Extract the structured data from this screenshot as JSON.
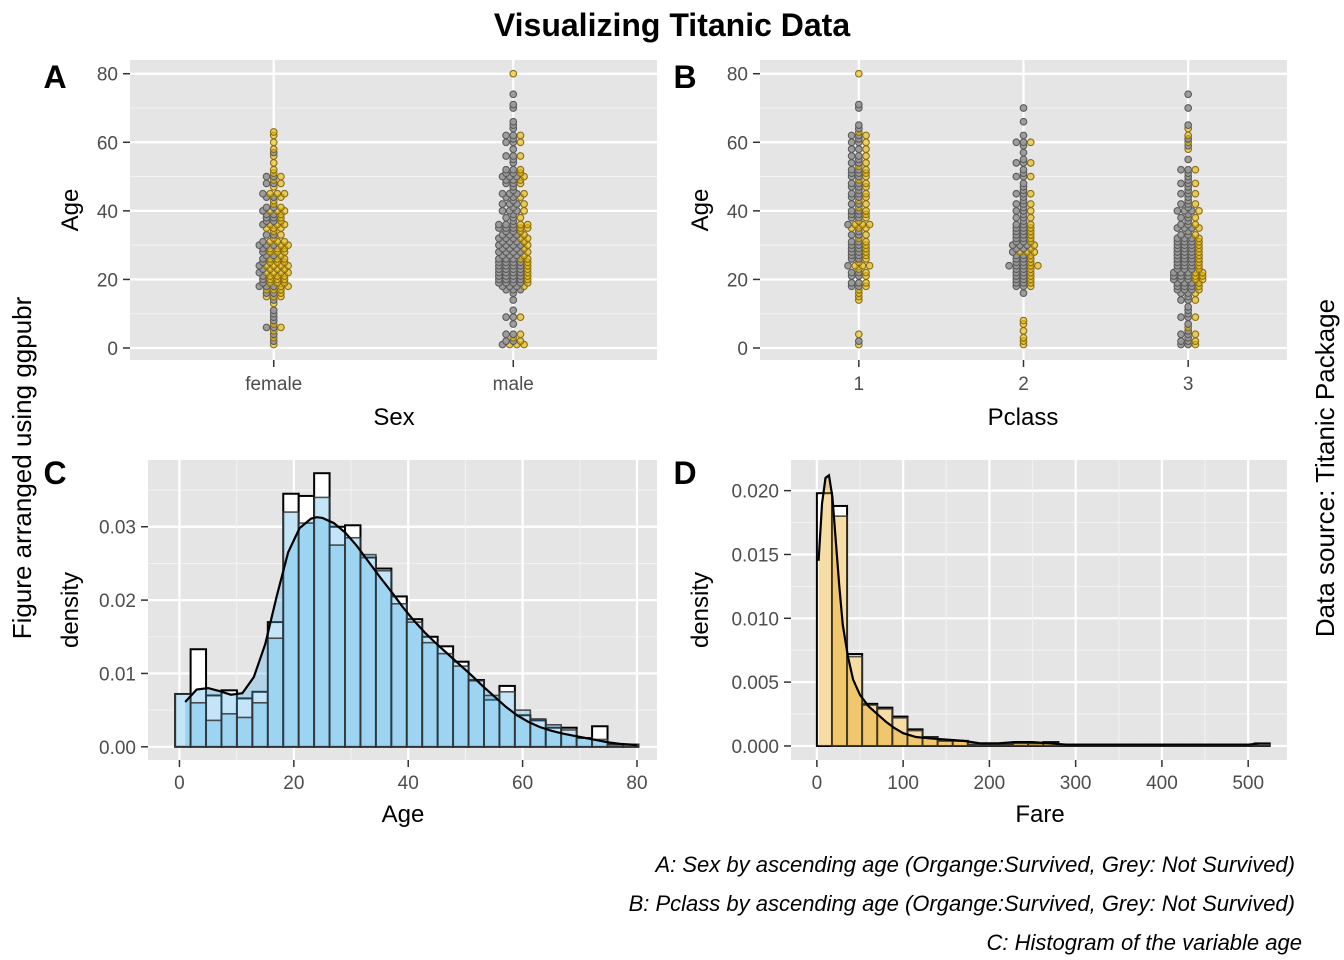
{
  "title": "Visualizing Titanic Data",
  "left_caption": "Figure arranged using ggpubr",
  "right_caption": "Data source: Titanic Package",
  "captions": [
    "A: Sex by ascending age (Organge:Survived, Grey: Not Survived)",
    "B: Pclass by ascending age (Organge:Survived, Grey: Not Survived)",
    "C: Histogram of the variable age"
  ],
  "colors": {
    "survived": "#E7B800",
    "not_survived": "#999999",
    "age_fill": "#56B4E9",
    "fare_fill": "#E69F00",
    "panel_bg": "#E5E5E5"
  },
  "chart_data": [
    {
      "tag": "A",
      "type": "scatter",
      "xlabel": "Sex",
      "ylabel": "Age",
      "categories": [
        "female",
        "male"
      ],
      "yticks": [
        0,
        20,
        40,
        60,
        80
      ],
      "ylim": [
        -3.5,
        84
      ],
      "series": [
        {
          "name": "Survived",
          "values": [
            {
              "x": "female",
              "y": [
                1,
                3,
                5,
                6,
                7,
                13,
                15,
                15,
                16,
                17,
                17,
                18,
                18,
                19,
                19,
                20,
                20,
                21,
                21,
                22,
                22,
                22,
                23,
                23,
                24,
                24,
                24,
                25,
                25,
                26,
                26,
                27,
                28,
                28,
                29,
                29,
                30,
                30,
                31,
                31,
                32,
                33,
                34,
                35,
                35,
                36,
                36,
                37,
                38,
                39,
                40,
                40,
                41,
                42,
                43,
                44,
                45,
                45,
                47,
                48,
                49,
                50,
                51,
                52,
                54,
                56,
                58,
                60,
                62,
                63
              ]
            },
            {
              "x": "male",
              "y": [
                1,
                1,
                2,
                3,
                4,
                9,
                18,
                19,
                20,
                21,
                22,
                23,
                24,
                25,
                26,
                26,
                27,
                28,
                29,
                30,
                31,
                32,
                32,
                33,
                34,
                35,
                35,
                36,
                36,
                38,
                40,
                42,
                44,
                45,
                48,
                49,
                50,
                51,
                52,
                56,
                60,
                62,
                80
              ]
            }
          ]
        },
        {
          "name": "Not Survived",
          "values": [
            {
              "x": "female",
              "y": [
                2,
                4,
                6,
                8,
                9,
                10,
                11,
                14,
                16,
                18,
                18,
                19,
                20,
                21,
                22,
                23,
                24,
                25,
                26,
                27,
                28,
                29,
                30,
                30,
                31,
                33,
                36,
                37,
                38,
                39,
                40,
                41,
                44,
                45,
                48,
                50,
                57
              ]
            },
            {
              "x": "male",
              "y": [
                1,
                2,
                4,
                7,
                9,
                11,
                14,
                16,
                17,
                17,
                18,
                18,
                19,
                19,
                19,
                20,
                20,
                20,
                21,
                21,
                21,
                22,
                22,
                22,
                23,
                23,
                23,
                24,
                24,
                24,
                25,
                25,
                25,
                26,
                26,
                27,
                27,
                28,
                28,
                28,
                29,
                29,
                30,
                30,
                30,
                31,
                31,
                32,
                32,
                33,
                33,
                34,
                35,
                35,
                36,
                36,
                37,
                38,
                39,
                40,
                40,
                41,
                42,
                42,
                43,
                44,
                45,
                45,
                46,
                47,
                48,
                49,
                50,
                50,
                51,
                52,
                54,
                55,
                56,
                58,
                60,
                61,
                62,
                64,
                65,
                66,
                70,
                71,
                74
              ]
            }
          ]
        }
      ]
    },
    {
      "tag": "B",
      "type": "scatter",
      "xlabel": "Pclass",
      "ylabel": "Age",
      "categories": [
        "1",
        "2",
        "3"
      ],
      "yticks": [
        0,
        20,
        40,
        60,
        80
      ],
      "ylim": [
        -3.5,
        84
      ],
      "series": [
        {
          "name": "Survived",
          "values": [
            {
              "x": "1",
              "y": [
                1,
                4,
                14,
                15,
                16,
                17,
                18,
                19,
                21,
                22,
                23,
                24,
                24,
                25,
                26,
                27,
                28,
                29,
                30,
                31,
                32,
                33,
                35,
                35,
                36,
                36,
                37,
                38,
                39,
                40,
                41,
                42,
                43,
                44,
                45,
                47,
                48,
                49,
                50,
                51,
                52,
                53,
                54,
                56,
                58,
                60,
                62,
                63,
                80
              ]
            },
            {
              "x": "2",
              "y": [
                1,
                2,
                3,
                5,
                7,
                8,
                18,
                19,
                20,
                21,
                22,
                23,
                24,
                24,
                25,
                26,
                27,
                28,
                28,
                29,
                30,
                31,
                32,
                33,
                34,
                35,
                36,
                38,
                40,
                42,
                45,
                50,
                54,
                60
              ]
            },
            {
              "x": "3",
              "y": [
                1,
                2,
                4,
                6,
                9,
                14,
                16,
                17,
                18,
                19,
                20,
                20,
                21,
                21,
                22,
                22,
                23,
                24,
                25,
                26,
                27,
                28,
                29,
                30,
                31,
                32,
                33,
                35,
                36,
                38,
                40,
                42,
                45,
                48,
                52,
                58,
                60,
                62,
                64
              ]
            }
          ]
        },
        {
          "name": "Not Survived",
          "values": [
            {
              "x": "1",
              "y": [
                2,
                18,
                19,
                21,
                22,
                24,
                26,
                27,
                28,
                29,
                30,
                31,
                33,
                34,
                36,
                38,
                39,
                40,
                42,
                44,
                45,
                46,
                47,
                48,
                50,
                51,
                52,
                54,
                55,
                56,
                58,
                60,
                61,
                62,
                64,
                65,
                70,
                71
              ]
            },
            {
              "x": "2",
              "y": [
                16,
                18,
                19,
                20,
                21,
                22,
                23,
                24,
                24,
                25,
                26,
                27,
                28,
                29,
                30,
                30,
                31,
                32,
                33,
                34,
                35,
                36,
                37,
                38,
                39,
                40,
                41,
                42,
                43,
                44,
                45,
                46,
                47,
                48,
                50,
                51,
                52,
                54,
                55,
                57,
                59,
                60,
                62,
                66,
                70
              ]
            },
            {
              "x": "3",
              "y": [
                1,
                2,
                3,
                4,
                5,
                7,
                9,
                10,
                11,
                12,
                14,
                15,
                16,
                17,
                17,
                18,
                18,
                19,
                19,
                20,
                20,
                21,
                21,
                22,
                22,
                23,
                23,
                24,
                24,
                25,
                25,
                26,
                26,
                27,
                27,
                28,
                28,
                29,
                29,
                30,
                30,
                31,
                31,
                32,
                32,
                33,
                34,
                35,
                35,
                36,
                37,
                38,
                39,
                40,
                40,
                41,
                42,
                43,
                44,
                45,
                46,
                47,
                48,
                49,
                50,
                51,
                52,
                55,
                59,
                61,
                65,
                70,
                74
              ]
            }
          ]
        }
      ]
    },
    {
      "tag": "C",
      "type": "bar",
      "xlabel": "Age",
      "ylabel": "density",
      "xticks": [
        0,
        20,
        40,
        60,
        80
      ],
      "yticks": [
        0.0,
        0.01,
        0.02,
        0.03
      ],
      "ytick_labels": [
        "0.00",
        "0.01",
        "0.02",
        "0.03"
      ],
      "xlim": [
        -5.5,
        83.5
      ],
      "ylim": [
        -0.0018,
        0.0391
      ],
      "bin_width": 2.7,
      "bins_x": [
        -0.75,
        1.95,
        4.65,
        7.35,
        10.05,
        12.75,
        15.45,
        18.15,
        20.85,
        23.55,
        26.25,
        28.95,
        31.65,
        34.35,
        37.05,
        39.75,
        42.45,
        45.15,
        47.85,
        50.55,
        53.25,
        55.95,
        58.65,
        61.35,
        64.05,
        66.75,
        69.45,
        72.15,
        74.85,
        77.55
      ],
      "bins_density": [
        0.0072,
        0.0133,
        0.007,
        0.0077,
        0.0066,
        0.0075,
        0.017,
        0.0345,
        0.0342,
        0.0373,
        0.03,
        0.0302,
        0.0258,
        0.0243,
        0.0205,
        0.0174,
        0.015,
        0.0137,
        0.0116,
        0.0091,
        0.0064,
        0.0083,
        0.0043,
        0.0036,
        0.0026,
        0.0026,
        0.0012,
        0.0028,
        0.0003,
        0.0003
      ],
      "fill_density": [
        0.0072,
        0.006,
        0.0036,
        0.0045,
        0.004,
        0.006,
        0.0148,
        0.032,
        0.0305,
        0.034,
        0.0275,
        0.0285,
        0.0262,
        0.024,
        0.0195,
        0.017,
        0.0142,
        0.0127,
        0.011,
        0.009,
        0.007,
        0.0075,
        0.005,
        0.0038,
        0.003,
        0.0023,
        0.0012,
        0.001,
        0.0003,
        0.0003
      ],
      "density_x": [
        1,
        3,
        5,
        7,
        9,
        11,
        13,
        15,
        17,
        19,
        21,
        23,
        24,
        25,
        27,
        29,
        31,
        33,
        35,
        37,
        39,
        41,
        43,
        45,
        47,
        49,
        51,
        53,
        55,
        57,
        59,
        61,
        63,
        65,
        67,
        69,
        71,
        73,
        75,
        77,
        79,
        80
      ],
      "density_y": [
        0.0061,
        0.0078,
        0.008,
        0.0076,
        0.0071,
        0.0073,
        0.0095,
        0.014,
        0.0205,
        0.0265,
        0.0298,
        0.0311,
        0.0313,
        0.0312,
        0.0305,
        0.0292,
        0.0274,
        0.0253,
        0.0232,
        0.0212,
        0.0191,
        0.0172,
        0.0155,
        0.014,
        0.0126,
        0.0112,
        0.0098,
        0.0083,
        0.0069,
        0.0055,
        0.0043,
        0.0034,
        0.0027,
        0.0022,
        0.0018,
        0.0015,
        0.0012,
        0.0009,
        0.0006,
        0.0004,
        0.0003,
        0.0002
      ]
    },
    {
      "tag": "D",
      "type": "bar",
      "xlabel": "Fare",
      "ylabel": "density",
      "xticks": [
        0,
        100,
        200,
        300,
        400,
        500
      ],
      "yticks": [
        0.0,
        0.005,
        0.01,
        0.015,
        0.02
      ],
      "ytick_labels": [
        "0.000",
        "0.005",
        "0.010",
        "0.015",
        "0.020"
      ],
      "xlim": [
        -30,
        545
      ],
      "ylim": [
        -0.0011,
        0.0224
      ],
      "bin_width": 17.5,
      "bins_x": [
        0,
        17.5,
        35,
        52.5,
        70,
        87.5,
        105,
        122.5,
        140,
        157.5,
        175,
        192.5,
        210,
        227.5,
        245,
        262.5,
        280,
        297.5,
        315,
        332.5,
        350,
        367.5,
        385,
        402.5,
        420,
        437.5,
        455,
        472.5,
        490,
        507.5
      ],
      "bins_density": [
        0.0198,
        0.0188,
        0.0072,
        0.0033,
        0.003,
        0.0023,
        0.0013,
        0.0007,
        0.0004,
        0.0004,
        0.0001,
        0.0001,
        0.0001,
        0.0003,
        0.0002,
        0.0003,
        0.0001,
        0.0001,
        0.0001,
        0.0001,
        0.0001,
        0.0001,
        0.0001,
        0.0001,
        0.0001,
        0.0001,
        0.0001,
        0.0001,
        0.0001,
        0.0002
      ],
      "fill_density": [
        0.0,
        0.018,
        0.007,
        0.0032,
        0.0029,
        0.0022,
        0.0012,
        0.0007,
        0.0004,
        0.0004,
        0.0001,
        0.0001,
        0.0001,
        0.0002,
        0.0002,
        0.0002,
        0.0001,
        0.0001,
        0.0001,
        0.0001,
        0.0001,
        0.0001,
        0.0001,
        0.0001,
        0.0001,
        0.0001,
        0.0001,
        0.0001,
        0.0001,
        0.0001
      ],
      "density_x": [
        2,
        6,
        10,
        14,
        18,
        22,
        26,
        30,
        36,
        42,
        50,
        60,
        70,
        80,
        90,
        100,
        115,
        130,
        150,
        170,
        190,
        210,
        230,
        250,
        270,
        290,
        320,
        360,
        400,
        450,
        500,
        512
      ],
      "density_y": [
        0.0145,
        0.019,
        0.021,
        0.0212,
        0.0195,
        0.016,
        0.0125,
        0.0095,
        0.007,
        0.0052,
        0.004,
        0.0031,
        0.0025,
        0.0019,
        0.0014,
        0.001,
        0.0007,
        0.0006,
        0.0005,
        0.0004,
        0.0002,
        0.0002,
        0.0003,
        0.0003,
        0.0002,
        0.0001,
        0.0001,
        0.0001,
        0.0001,
        0.0001,
        0.0001,
        0.0002
      ]
    }
  ]
}
